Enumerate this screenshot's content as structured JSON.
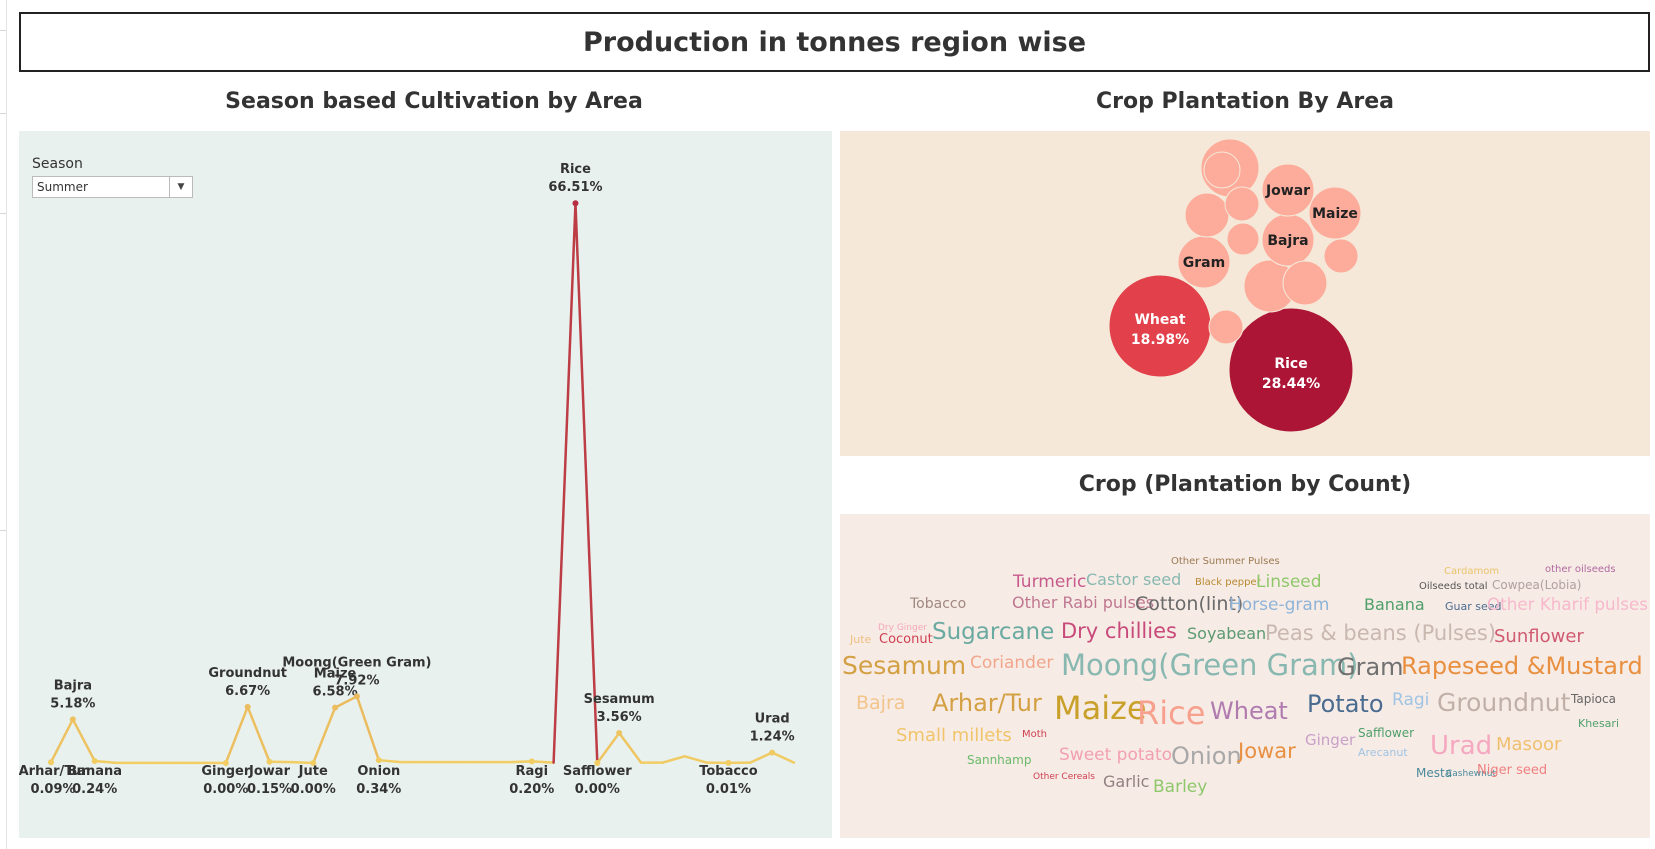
{
  "dashboard": {
    "title": "Production in tonnes region wise",
    "season_title": "Season based Cultivation  by Area",
    "bubble_title": "Crop Plantation By Area",
    "word_title": "Crop (Plantation by Count)"
  },
  "filter": {
    "label": "Season",
    "value": "Summer"
  },
  "colors": {
    "line_low": "#f1cd63",
    "line_high": "#b3203f",
    "season_bg": "#e9f1ef",
    "bubble_bg": "#f5e8d8",
    "word_bg": "#f7ebe6"
  },
  "chart_data": [
    {
      "type": "line",
      "x": [
        "Arhar/Tur",
        "Bajra",
        "Banana",
        "c4",
        "c5",
        "c6",
        "c7",
        "c8",
        "Ginger",
        "Groundnut",
        "Jowar",
        "c12",
        "Jute",
        "Maize",
        "Moong(Green Gram)",
        "Onion",
        "c17",
        "c18",
        "c19",
        "c20",
        "c21",
        "c22",
        "Ragi",
        "c24",
        "Rice",
        "Safflower",
        "Sesamum",
        "c28",
        "c29",
        "c30",
        "c31",
        "Tobacco",
        "c33",
        "Urad",
        "c35"
      ],
      "values": [
        0.09,
        5.18,
        0.24,
        0.02,
        0.02,
        0.02,
        0.02,
        0.02,
        0.0,
        6.67,
        0.15,
        0.1,
        0.0,
        6.58,
        7.92,
        0.34,
        0.1,
        0.1,
        0.1,
        0.1,
        0.1,
        0.1,
        0.2,
        0.05,
        66.51,
        0.0,
        3.56,
        0.05,
        0.05,
        0.8,
        0.05,
        0.01,
        0.05,
        1.24,
        0.05
      ],
      "labels": [
        {
          "index": 0,
          "name": "Arhar/Tur",
          "value": "0.09%"
        },
        {
          "index": 1,
          "name": "Bajra",
          "value": "5.18%"
        },
        {
          "index": 2,
          "name": "Banana",
          "value": "0.24%"
        },
        {
          "index": 8,
          "name": "Ginger",
          "value": "0.00%"
        },
        {
          "index": 9,
          "name": "Groundnut",
          "value": "6.67%"
        },
        {
          "index": 10,
          "name": "Jowar",
          "value": "0.15%"
        },
        {
          "index": 12,
          "name": "Jute",
          "value": "0.00%"
        },
        {
          "index": 13,
          "name": "Maize",
          "value": "6.58%"
        },
        {
          "index": 14,
          "name": "Moong(Green Gram)",
          "value": "7.92%"
        },
        {
          "index": 15,
          "name": "Onion",
          "value": "0.34%"
        },
        {
          "index": 22,
          "name": "Ragi",
          "value": "0.20%"
        },
        {
          "index": 24,
          "name": "Rice",
          "value": "66.51%"
        },
        {
          "index": 25,
          "name": "Safflower",
          "value": "0.00%"
        },
        {
          "index": 26,
          "name": "Sesamum",
          "value": "3.56%"
        },
        {
          "index": 31,
          "name": "Tobacco",
          "value": "0.01%"
        },
        {
          "index": 33,
          "name": "Urad",
          "value": "1.24%"
        }
      ],
      "ylim": [
        0,
        72
      ]
    },
    {
      "type": "bubble",
      "bubbles": [
        {
          "name": "Rice",
          "value": 28.44,
          "label": "28.44%",
          "color": "#ac1536"
        },
        {
          "name": "Wheat",
          "value": 18.98,
          "label": "18.98%",
          "color": "#e2404a"
        },
        {
          "name": "",
          "value": 5.4,
          "label": "",
          "color": "#fdab9a"
        },
        {
          "name": "",
          "value": 4.5,
          "label": "",
          "color": "#fdab9a"
        },
        {
          "name": "Bajra",
          "value": 3.3,
          "label": "",
          "color": "#fdab9a"
        },
        {
          "name": "Jowar",
          "value": 3.1,
          "label": "",
          "color": "#fdab9a"
        },
        {
          "name": "Gram",
          "value": 3.1,
          "label": "",
          "color": "#fdab9a"
        },
        {
          "name": "Maize",
          "value": 2.9,
          "label": "",
          "color": "#fdab9a"
        },
        {
          "name": "",
          "value": 2.2,
          "label": "",
          "color": "#fdab9a"
        },
        {
          "name": "",
          "value": 2.2,
          "label": "",
          "color": "#fdab9a"
        },
        {
          "name": "",
          "value": 1.6,
          "label": "",
          "color": "#fdab9a"
        },
        {
          "name": "",
          "value": 1.3,
          "label": "",
          "color": "#fdab9a"
        },
        {
          "name": "",
          "value": 1.2,
          "label": "",
          "color": "#fdab9a"
        },
        {
          "name": "",
          "value": 1.0,
          "label": "",
          "color": "#fdab9a"
        },
        {
          "name": "",
          "value": 1.0,
          "label": "",
          "color": "#fdab9a"
        }
      ]
    },
    {
      "type": "wordcloud",
      "words": [
        {
          "text": "Other Summer Pulses",
          "color": "#9c7a50"
        },
        {
          "text": "Cardamom",
          "color": "#e8c46a"
        },
        {
          "text": "other oilseeds",
          "color": "#b06aa0"
        },
        {
          "text": "Turmeric",
          "color": "#c75b8c"
        },
        {
          "text": "Castor seed",
          "color": "#88b8b0"
        },
        {
          "text": "Black pepper",
          "color": "#b8892f"
        },
        {
          "text": "Linseed",
          "color": "#8ec86a"
        },
        {
          "text": "Oilseeds total",
          "color": "#555555"
        },
        {
          "text": "Cowpea(Lobia)",
          "color": "#b0a0a0"
        },
        {
          "text": "Tobacco",
          "color": "#a08880"
        },
        {
          "text": "Other Rabi pulses",
          "color": "#c07890"
        },
        {
          "text": "Cotton(lint)",
          "color": "#6a6a6a"
        },
        {
          "text": "Horse-gram",
          "color": "#8fb4d8"
        },
        {
          "text": "Banana",
          "color": "#4fa06a"
        },
        {
          "text": "Guar seed",
          "color": "#4a6c90"
        },
        {
          "text": "Other Kharif pulses",
          "color": "#f7b8cc"
        },
        {
          "text": "Dry Ginger",
          "color": "#f4a8b8"
        },
        {
          "text": "Jute",
          "color": "#f0c080"
        },
        {
          "text": "Coconut",
          "color": "#d04050"
        },
        {
          "text": "Sugarcane",
          "color": "#6aaaa0"
        },
        {
          "text": "Dry chillies",
          "color": "#c84a7a"
        },
        {
          "text": "Soyabean",
          "color": "#5a9a70"
        },
        {
          "text": "Peas & beans (Pulses)",
          "color": "#c8b8b0"
        },
        {
          "text": "Sunflower",
          "color": "#d05a70"
        },
        {
          "text": "Sesamum",
          "color": "#d4a044"
        },
        {
          "text": "Coriander",
          "color": "#f2a68c"
        },
        {
          "text": "Moong(Green Gram)",
          "color": "#88b8b0"
        },
        {
          "text": "Gram",
          "color": "#707070"
        },
        {
          "text": "Rapeseed &Mustard",
          "color": "#e89040"
        },
        {
          "text": "Bajra",
          "color": "#f3c48a"
        },
        {
          "text": "Arhar/Tur",
          "color": "#d4a044"
        },
        {
          "text": "Maize",
          "color": "#c9a02a"
        },
        {
          "text": "Rice",
          "color": "#f7a08e"
        },
        {
          "text": "Wheat",
          "color": "#b07cb0"
        },
        {
          "text": "Potato",
          "color": "#4a6c90"
        },
        {
          "text": "Ragi",
          "color": "#9fc4e4"
        },
        {
          "text": "Groundnut",
          "color": "#c0b0a8"
        },
        {
          "text": "Tapioca",
          "color": "#666666"
        },
        {
          "text": "Khesari",
          "color": "#4fa06a"
        },
        {
          "text": "Small millets",
          "color": "#f0c56a"
        },
        {
          "text": "Moth",
          "color": "#d04050"
        },
        {
          "text": "Safflower",
          "color": "#4fa06a"
        },
        {
          "text": "Sannhamp",
          "color": "#6aba6a"
        },
        {
          "text": "Sweet potato",
          "color": "#f2a0b0"
        },
        {
          "text": "Onion",
          "color": "#a8a8a8"
        },
        {
          "text": "Jowar",
          "color": "#e89040"
        },
        {
          "text": "Ginger",
          "color": "#c8a0c8"
        },
        {
          "text": "Arecanut",
          "color": "#9fc4e4"
        },
        {
          "text": "Urad",
          "color": "#f5a8c0"
        },
        {
          "text": "Masoor",
          "color": "#f0c070"
        },
        {
          "text": "Other Cereals",
          "color": "#d04050"
        },
        {
          "text": "Garlic",
          "color": "#908080"
        },
        {
          "text": "Barley",
          "color": "#8ec86a"
        },
        {
          "text": "Mesta",
          "color": "#4a8a9a"
        },
        {
          "text": "Cashewnut",
          "color": "#4a8a9a"
        },
        {
          "text": "Niger seed",
          "color": "#f08080"
        }
      ]
    }
  ]
}
